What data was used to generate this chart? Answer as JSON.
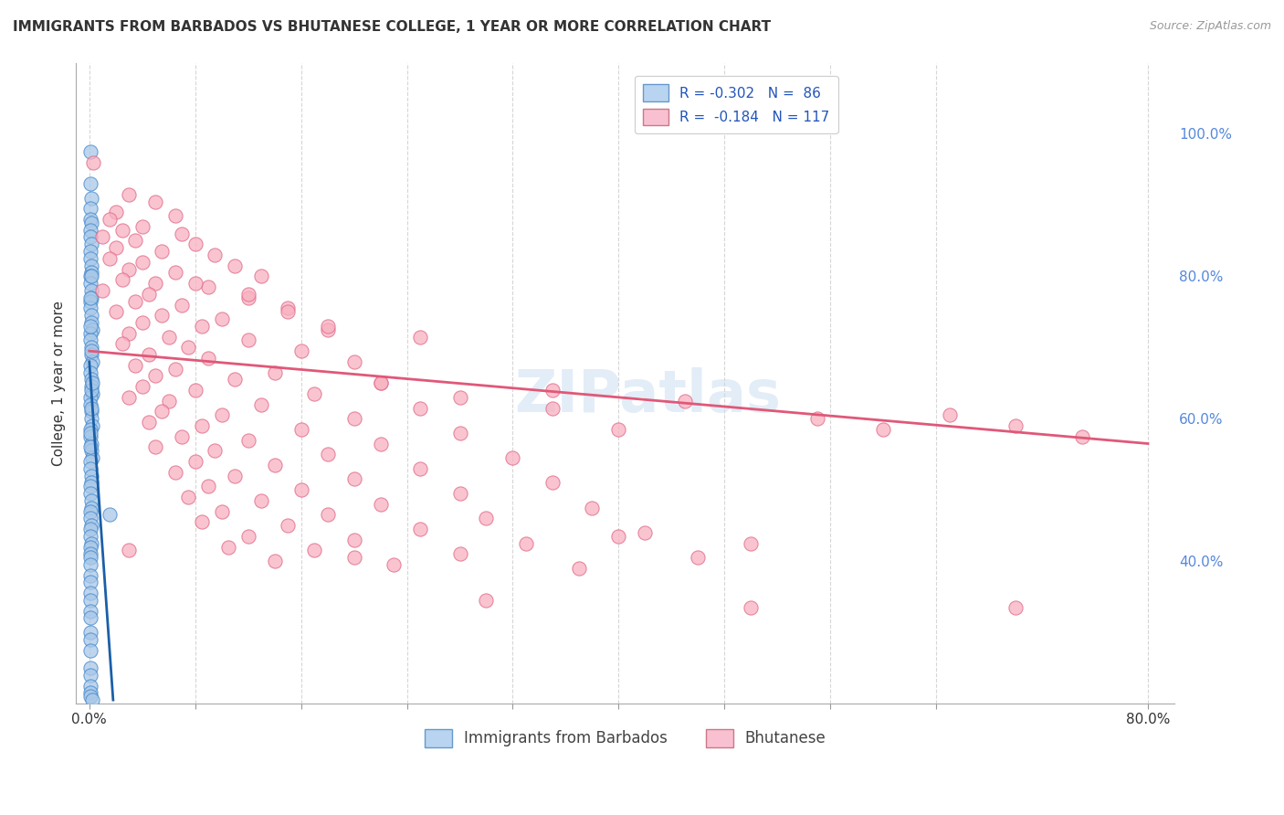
{
  "title": "IMMIGRANTS FROM BARBADOS VS BHUTANESE COLLEGE, 1 YEAR OR MORE CORRELATION CHART",
  "source": "Source: ZipAtlas.com",
  "ylabel": "College, 1 year or more",
  "x_tick_labels": [
    "0.0%",
    "",
    "",
    "",
    "",
    "",
    "",
    "",
    "",
    "80.0%"
  ],
  "x_tick_values": [
    0.0,
    8.0,
    16.0,
    24.0,
    32.0,
    40.0,
    48.0,
    56.0,
    64.0,
    80.0
  ],
  "y_tick_labels": [
    "40.0%",
    "60.0%",
    "80.0%",
    "100.0%"
  ],
  "y_tick_values": [
    40.0,
    60.0,
    80.0,
    100.0
  ],
  "xlim": [
    -1.0,
    82.0
  ],
  "ylim": [
    20.0,
    110.0
  ],
  "scatter_blue_color": "#a8c8e8",
  "scatter_blue_edge": "#4488cc",
  "scatter_pink_color": "#f8b0c0",
  "scatter_pink_edge": "#e06888",
  "scatter_blue_points": [
    [
      0.05,
      97.5
    ],
    [
      0.08,
      93.0
    ],
    [
      0.12,
      91.0
    ],
    [
      0.06,
      89.5
    ],
    [
      0.1,
      88.0
    ],
    [
      0.15,
      87.5
    ],
    [
      0.05,
      86.5
    ],
    [
      0.08,
      85.5
    ],
    [
      0.12,
      84.5
    ],
    [
      0.05,
      83.5
    ],
    [
      0.08,
      82.5
    ],
    [
      0.12,
      81.5
    ],
    [
      0.18,
      80.5
    ],
    [
      0.05,
      80.0
    ],
    [
      0.08,
      79.0
    ],
    [
      0.12,
      78.0
    ],
    [
      0.18,
      77.0
    ],
    [
      0.05,
      76.5
    ],
    [
      0.08,
      75.5
    ],
    [
      0.12,
      74.5
    ],
    [
      0.18,
      73.5
    ],
    [
      0.24,
      72.5
    ],
    [
      0.05,
      72.0
    ],
    [
      0.08,
      71.0
    ],
    [
      0.12,
      70.0
    ],
    [
      0.18,
      69.0
    ],
    [
      0.24,
      68.0
    ],
    [
      0.05,
      67.5
    ],
    [
      0.08,
      66.5
    ],
    [
      0.12,
      65.5
    ],
    [
      0.18,
      64.5
    ],
    [
      0.24,
      63.5
    ],
    [
      0.05,
      63.0
    ],
    [
      0.08,
      62.0
    ],
    [
      0.12,
      61.0
    ],
    [
      0.18,
      60.0
    ],
    [
      0.24,
      59.0
    ],
    [
      0.05,
      58.5
    ],
    [
      0.08,
      57.5
    ],
    [
      0.12,
      56.5
    ],
    [
      0.18,
      55.5
    ],
    [
      0.24,
      54.5
    ],
    [
      0.05,
      54.0
    ],
    [
      0.08,
      53.0
    ],
    [
      0.12,
      52.0
    ],
    [
      0.18,
      51.0
    ],
    [
      0.05,
      50.5
    ],
    [
      0.08,
      49.5
    ],
    [
      0.12,
      48.5
    ],
    [
      0.18,
      47.5
    ],
    [
      0.05,
      47.0
    ],
    [
      0.08,
      46.0
    ],
    [
      0.12,
      45.0
    ],
    [
      0.05,
      44.5
    ],
    [
      0.08,
      43.5
    ],
    [
      0.12,
      42.5
    ],
    [
      0.05,
      42.0
    ],
    [
      0.08,
      41.0
    ],
    [
      0.05,
      40.5
    ],
    [
      0.08,
      39.5
    ],
    [
      0.05,
      38.0
    ],
    [
      0.08,
      37.0
    ],
    [
      0.05,
      35.5
    ],
    [
      0.08,
      34.5
    ],
    [
      0.05,
      33.0
    ],
    [
      0.08,
      32.0
    ],
    [
      0.05,
      30.0
    ],
    [
      0.08,
      29.0
    ],
    [
      0.05,
      27.5
    ],
    [
      1.5,
      46.5
    ],
    [
      0.05,
      25.0
    ],
    [
      0.08,
      24.0
    ],
    [
      0.05,
      22.5
    ],
    [
      0.08,
      21.5
    ],
    [
      0.05,
      21.0
    ],
    [
      0.2,
      20.5
    ],
    [
      0.1,
      58.0
    ],
    [
      0.15,
      64.0
    ],
    [
      0.18,
      69.5
    ],
    [
      0.08,
      73.0
    ],
    [
      0.06,
      77.0
    ],
    [
      0.12,
      80.0
    ],
    [
      0.2,
      65.0
    ],
    [
      0.15,
      61.5
    ],
    [
      0.1,
      56.0
    ]
  ],
  "scatter_pink_points": [
    [
      0.3,
      96.0
    ],
    [
      3.0,
      91.5
    ],
    [
      5.0,
      90.5
    ],
    [
      2.0,
      89.0
    ],
    [
      6.5,
      88.5
    ],
    [
      1.5,
      88.0
    ],
    [
      4.0,
      87.0
    ],
    [
      2.5,
      86.5
    ],
    [
      7.0,
      86.0
    ],
    [
      1.0,
      85.5
    ],
    [
      3.5,
      85.0
    ],
    [
      8.0,
      84.5
    ],
    [
      2.0,
      84.0
    ],
    [
      5.5,
      83.5
    ],
    [
      9.5,
      83.0
    ],
    [
      1.5,
      82.5
    ],
    [
      4.0,
      82.0
    ],
    [
      11.0,
      81.5
    ],
    [
      3.0,
      81.0
    ],
    [
      6.5,
      80.5
    ],
    [
      13.0,
      80.0
    ],
    [
      2.5,
      79.5
    ],
    [
      5.0,
      79.0
    ],
    [
      9.0,
      78.5
    ],
    [
      1.0,
      78.0
    ],
    [
      4.5,
      77.5
    ],
    [
      12.0,
      77.0
    ],
    [
      3.5,
      76.5
    ],
    [
      7.0,
      76.0
    ],
    [
      15.0,
      75.5
    ],
    [
      2.0,
      75.0
    ],
    [
      5.5,
      74.5
    ],
    [
      10.0,
      74.0
    ],
    [
      4.0,
      73.5
    ],
    [
      8.5,
      73.0
    ],
    [
      18.0,
      72.5
    ],
    [
      3.0,
      72.0
    ],
    [
      6.0,
      71.5
    ],
    [
      12.0,
      71.0
    ],
    [
      2.5,
      70.5
    ],
    [
      7.5,
      70.0
    ],
    [
      16.0,
      69.5
    ],
    [
      4.5,
      69.0
    ],
    [
      9.0,
      68.5
    ],
    [
      20.0,
      68.0
    ],
    [
      3.5,
      67.5
    ],
    [
      6.5,
      67.0
    ],
    [
      14.0,
      66.5
    ],
    [
      5.0,
      66.0
    ],
    [
      11.0,
      65.5
    ],
    [
      22.0,
      65.0
    ],
    [
      4.0,
      64.5
    ],
    [
      8.0,
      64.0
    ],
    [
      17.0,
      63.5
    ],
    [
      3.0,
      63.0
    ],
    [
      6.0,
      62.5
    ],
    [
      13.0,
      62.0
    ],
    [
      25.0,
      61.5
    ],
    [
      5.5,
      61.0
    ],
    [
      10.0,
      60.5
    ],
    [
      20.0,
      60.0
    ],
    [
      4.5,
      59.5
    ],
    [
      8.5,
      59.0
    ],
    [
      16.0,
      58.5
    ],
    [
      28.0,
      58.0
    ],
    [
      7.0,
      57.5
    ],
    [
      12.0,
      57.0
    ],
    [
      22.0,
      56.5
    ],
    [
      5.0,
      56.0
    ],
    [
      9.5,
      55.5
    ],
    [
      18.0,
      55.0
    ],
    [
      32.0,
      54.5
    ],
    [
      8.0,
      54.0
    ],
    [
      14.0,
      53.5
    ],
    [
      25.0,
      53.0
    ],
    [
      6.5,
      52.5
    ],
    [
      11.0,
      52.0
    ],
    [
      20.0,
      51.5
    ],
    [
      35.0,
      51.0
    ],
    [
      9.0,
      50.5
    ],
    [
      16.0,
      50.0
    ],
    [
      28.0,
      49.5
    ],
    [
      7.5,
      49.0
    ],
    [
      13.0,
      48.5
    ],
    [
      22.0,
      48.0
    ],
    [
      38.0,
      47.5
    ],
    [
      10.0,
      47.0
    ],
    [
      18.0,
      46.5
    ],
    [
      30.0,
      46.0
    ],
    [
      8.5,
      45.5
    ],
    [
      15.0,
      45.0
    ],
    [
      25.0,
      44.5
    ],
    [
      42.0,
      44.0
    ],
    [
      12.0,
      43.5
    ],
    [
      20.0,
      43.0
    ],
    [
      33.0,
      42.5
    ],
    [
      10.5,
      42.0
    ],
    [
      17.0,
      41.5
    ],
    [
      28.0,
      41.0
    ],
    [
      46.0,
      40.5
    ],
    [
      14.0,
      40.0
    ],
    [
      23.0,
      39.5
    ],
    [
      37.0,
      39.0
    ],
    [
      3.0,
      41.5
    ],
    [
      40.0,
      43.5
    ],
    [
      50.0,
      42.5
    ],
    [
      55.0,
      60.0
    ],
    [
      60.0,
      58.5
    ],
    [
      65.0,
      60.5
    ],
    [
      70.0,
      59.0
    ],
    [
      75.0,
      57.5
    ],
    [
      70.0,
      33.5
    ],
    [
      50.0,
      33.5
    ],
    [
      30.0,
      34.5
    ],
    [
      20.0,
      40.5
    ],
    [
      40.0,
      58.5
    ],
    [
      45.0,
      62.5
    ],
    [
      35.0,
      64.0
    ],
    [
      25.0,
      71.5
    ],
    [
      15.0,
      75.0
    ],
    [
      8.0,
      79.0
    ],
    [
      12.0,
      77.5
    ],
    [
      18.0,
      73.0
    ],
    [
      22.0,
      65.0
    ],
    [
      28.0,
      63.0
    ],
    [
      35.0,
      61.5
    ]
  ],
  "trendline_blue": {
    "color": "#1a5fa8",
    "x_start": 0.0,
    "y_start": 68.0,
    "x_end": 1.8,
    "y_end": 20.5
  },
  "trendline_pink": {
    "color": "#e05878",
    "x_start": 0.0,
    "y_start": 69.5,
    "x_end": 80.0,
    "y_end": 56.5
  },
  "watermark_text": "ZIPatlas",
  "bg_color": "#ffffff",
  "grid_color": "#cccccc",
  "title_color": "#333333",
  "right_tick_color": "#5588dd",
  "legend_blue_face": "#b8d4f0",
  "legend_blue_edge": "#6699cc",
  "legend_pink_face": "#f8c0d0",
  "legend_pink_edge": "#cc7788",
  "legend_text_color": "#2255bb",
  "bottom_legend_text_color": "#444444"
}
